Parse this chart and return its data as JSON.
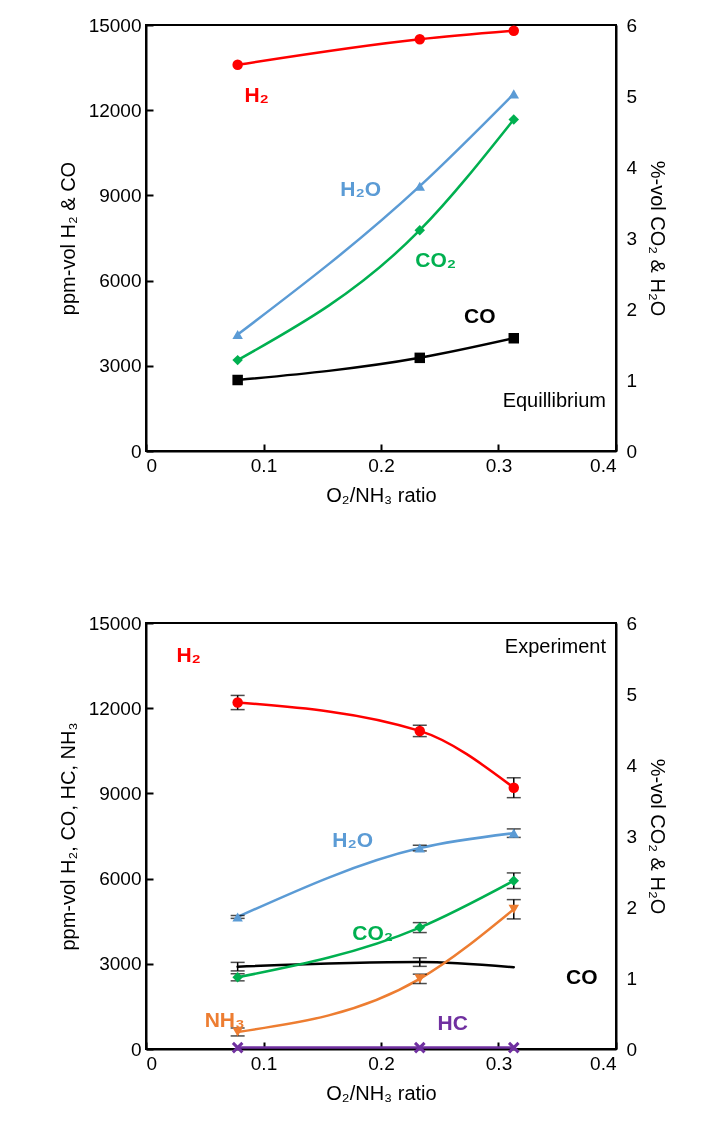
{
  "chart_data": [
    {
      "type": "line",
      "xlabel": "O₂/NH₃ ratio",
      "ylabel": "ppm-vol H₂ & CO",
      "y2label": "%-vol CO₂ & H₂O",
      "x": [
        0.078,
        0.233,
        0.313
      ],
      "xlim": [
        0,
        0.4
      ],
      "xticks": [
        0,
        0.1,
        0.2,
        0.3,
        0.4
      ],
      "ylim": [
        0,
        15000
      ],
      "yticks": [
        0,
        3000,
        6000,
        9000,
        12000,
        15000
      ],
      "y2lim": [
        0,
        6
      ],
      "y2ticks": [
        0,
        1,
        2,
        3,
        4,
        5,
        6
      ],
      "line_style": "solid",
      "series": [
        {
          "name": "H₂",
          "color": "#ff0000",
          "marker": "circle",
          "values": [
            13600,
            14500,
            14800
          ]
        },
        {
          "name": "H₂O",
          "color": "#5b9bd5",
          "marker": "triangle",
          "axis": "y2",
          "values": [
            1.64,
            3.73,
            5.03
          ]
        },
        {
          "name": "CO₂",
          "color": "#00b050",
          "marker": "diamond",
          "axis": "y2",
          "values": [
            1.28,
            3.11,
            4.67
          ]
        },
        {
          "name": "CO",
          "color": "#000000",
          "marker": "square",
          "values": [
            2500,
            3280,
            3970
          ]
        }
      ],
      "annotations": [
        "Equillibrium"
      ]
    },
    {
      "type": "line",
      "xlabel": "O₂/NH₃ ratio",
      "ylabel": "ppm-vol H₂, CO, HC, NH₃",
      "y2label": "%-vol CO₂ & H₂O",
      "x": [
        0.078,
        0.233,
        0.313
      ],
      "xlim": [
        0,
        0.4
      ],
      "xticks": [
        0,
        0.1,
        0.2,
        0.3,
        0.4
      ],
      "ylim": [
        0,
        15000
      ],
      "yticks": [
        0,
        3000,
        6000,
        9000,
        12000,
        15000
      ],
      "y2lim": [
        0,
        6
      ],
      "y2ticks": [
        0,
        1,
        2,
        3,
        4,
        5,
        6
      ],
      "line_style": "solid",
      "series": [
        {
          "name": "H₂",
          "color": "#ff0000",
          "marker": "circle",
          "values": [
            12200,
            11200,
            9200
          ],
          "errors": [
            250,
            200,
            350
          ]
        },
        {
          "name": "H₂O",
          "color": "#5b9bd5",
          "marker": "triangle",
          "axis": "y2",
          "values": [
            1.86,
            2.83,
            3.04
          ],
          "errors": [
            0.02,
            0.04,
            0.06
          ]
        },
        {
          "name": "CO₂",
          "color": "#00b050",
          "marker": "diamond",
          "axis": "y2",
          "values": [
            1.01,
            1.71,
            2.37
          ],
          "errors": [
            0.05,
            0.07,
            0.11
          ]
        },
        {
          "name": "CO",
          "color": "#000000",
          "marker": "none",
          "values": [
            2900,
            3060,
            2880
          ],
          "errors": [
            150,
            150,
            null
          ]
        },
        {
          "name": "NH₃",
          "color": "#ed7d31",
          "marker": "triangle-down",
          "values": [
            600,
            2470,
            4920
          ],
          "errors": [
            140,
            165,
            340
          ]
        },
        {
          "name": "HC",
          "color": "#7030a0",
          "marker": "cross",
          "values": [
            50,
            50,
            50
          ]
        }
      ],
      "annotations": [
        "Experiment"
      ]
    }
  ]
}
